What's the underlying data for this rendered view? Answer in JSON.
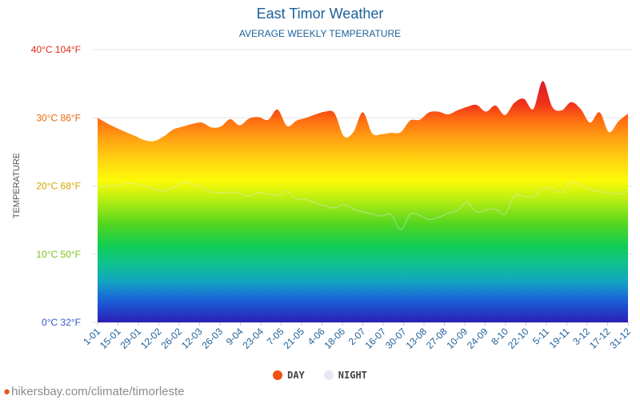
{
  "header": {
    "title": "East Timor Weather",
    "subtitle": "AVERAGE WEEKLY TEMPERATURE"
  },
  "legend": {
    "day_label": "DAY",
    "night_label": "NIGHT",
    "day_color": "#f2500f",
    "night_color": "#e6e8f2"
  },
  "footer": {
    "source": "hikersbay.com/climate/timorleste"
  },
  "chart_data": {
    "type": "area",
    "ylabel": "TEMPERATURE",
    "ylim": [
      0,
      40
    ],
    "yticks": [
      {
        "value": 0,
        "label": "0°C 32°F",
        "color": "#2f56c9"
      },
      {
        "value": 10,
        "label": "10°C 50°F",
        "color": "#7ec21a"
      },
      {
        "value": 20,
        "label": "20°C 68°F",
        "color": "#d4a800"
      },
      {
        "value": 30,
        "label": "30°C 86°F",
        "color": "#e8650a"
      },
      {
        "value": 40,
        "label": "40°C 104°F",
        "color": "#e02b1b"
      }
    ],
    "xticks": [
      "1-01",
      "15-01",
      "29-01",
      "12-02",
      "26-02",
      "12-03",
      "26-03",
      "9-04",
      "23-04",
      "7-05",
      "21-05",
      "4-06",
      "18-06",
      "2-07",
      "16-07",
      "30-07",
      "13-08",
      "27-08",
      "10-09",
      "24-09",
      "8-10",
      "22-10",
      "5-11",
      "19-11",
      "3-12",
      "17-12",
      "31-12"
    ],
    "series": [
      {
        "name": "DAY",
        "values": [
          30.0,
          29.2,
          28.5,
          27.9,
          27.3,
          26.7,
          26.6,
          27.3,
          28.3,
          28.7,
          29.1,
          29.3,
          28.6,
          28.7,
          29.8,
          28.9,
          29.9,
          30.1,
          29.7,
          31.2,
          28.8,
          29.6,
          30.0,
          30.5,
          30.9,
          30.7,
          27.3,
          27.9,
          30.8,
          27.7,
          27.6,
          27.8,
          27.9,
          29.6,
          29.7,
          30.8,
          30.9,
          30.5,
          31.1,
          31.6,
          31.9,
          30.9,
          31.8,
          30.4,
          32.2,
          32.8,
          31.3,
          35.4,
          31.6,
          31.1,
          32.3,
          31.3,
          29.3,
          30.8,
          27.9,
          29.5,
          30.6
        ],
        "color": "#f2500f"
      },
      {
        "name": "NIGHT",
        "values": [
          19.7,
          20.0,
          20.0,
          20.4,
          20.3,
          20.0,
          19.5,
          19.3,
          19.8,
          20.5,
          20.3,
          19.8,
          19.1,
          19.0,
          19.1,
          18.9,
          18.5,
          19.0,
          18.8,
          18.6,
          19.2,
          18.1,
          18.0,
          17.5,
          17.1,
          16.8,
          17.3,
          16.6,
          16.2,
          15.9,
          15.6,
          15.8,
          13.6,
          15.9,
          15.7,
          15.1,
          15.4,
          16.0,
          16.4,
          17.6,
          16.2,
          16.5,
          16.6,
          15.9,
          18.6,
          18.5,
          18.4,
          19.7,
          19.6,
          19.1,
          20.6,
          20.1,
          19.5,
          19.2,
          19.0,
          18.8,
          19.3
        ],
        "color": "#e6e8f2"
      }
    ],
    "grid": true,
    "legend_position": "bottom"
  }
}
